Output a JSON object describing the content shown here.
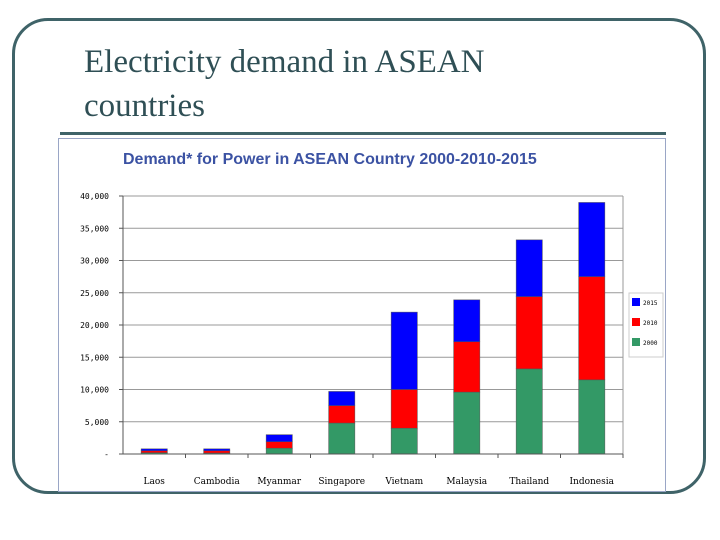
{
  "slide": {
    "title_line1": "Electricity demand in ASEAN",
    "title_line2": "countries"
  },
  "chart_data": {
    "type": "bar",
    "stacked": true,
    "title": "Demand* for Power in ASEAN Country 2000-2010-2015",
    "categories": [
      "Laos",
      "Cambodia",
      "Myanmar",
      "Singapore",
      "Vietnam",
      "Malaysia",
      "Thailand",
      "Indonesia"
    ],
    "series": [
      {
        "name": "2000",
        "color": "#339966",
        "values": [
          200,
          150,
          900,
          4800,
          4000,
          9600,
          13200,
          11500
        ]
      },
      {
        "name": "2010",
        "color": "#ff0000",
        "values": [
          300,
          350,
          1000,
          2700,
          6000,
          7800,
          11200,
          16000
        ]
      },
      {
        "name": "2015",
        "color": "#0000ff",
        "values": [
          300,
          300,
          1100,
          2200,
          12000,
          6500,
          8800,
          11500
        ]
      }
    ],
    "legend_order": [
      "2015",
      "2010",
      "2000"
    ],
    "legend_position": "right",
    "ylim": [
      0,
      40000
    ],
    "yticks": [
      {
        "value": 0,
        "label": "-"
      },
      {
        "value": 5000,
        "label": "5,000"
      },
      {
        "value": 10000,
        "label": "10,000"
      },
      {
        "value": 15000,
        "label": "15,000"
      },
      {
        "value": 20000,
        "label": "20,000"
      },
      {
        "value": 25000,
        "label": "25,000"
      },
      {
        "value": 30000,
        "label": "30,000"
      },
      {
        "value": 35000,
        "label": "35,000"
      },
      {
        "value": 40000,
        "label": "40,000"
      }
    ],
    "grid": true,
    "colors": {
      "title": "#3b52a3",
      "grid": "#999999",
      "axis": "#555555",
      "label": "#000000"
    }
  }
}
